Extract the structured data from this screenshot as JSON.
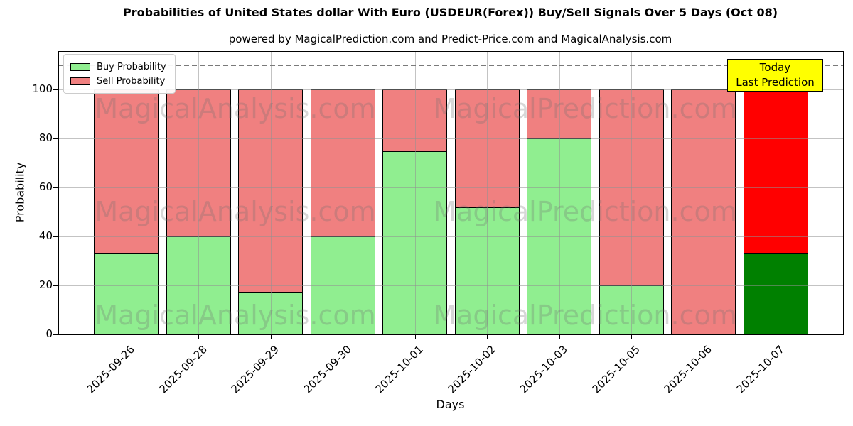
{
  "title": "Probabilities of United States dollar With Euro (USDEUR(Forex)) Buy/Sell Signals Over 5 Days (Oct 08)",
  "subtitle": "powered by MagicalPrediction.com and Predict-Price.com and MagicalAnalysis.com",
  "axes": {
    "x_label": "Days",
    "y_label": "Probability"
  },
  "legend": [
    {
      "label": "Buy Probability",
      "color": "#90EE90"
    },
    {
      "label": "Sell Probability",
      "color": "#F08080"
    }
  ],
  "annotation": {
    "line1": "Today",
    "line2": "Last Prediction",
    "bg": "#FFFF00",
    "border": "#000000"
  },
  "watermarks": {
    "left": "MagicalAnalysis.com",
    "right": "MagicalPrediction.com"
  },
  "chart_data": {
    "type": "bar",
    "stacked": true,
    "categories": [
      "2025-09-26",
      "2025-09-28",
      "2025-09-29",
      "2025-09-30",
      "2025-10-01",
      "2025-10-02",
      "2025-10-03",
      "2025-10-05",
      "2025-10-06",
      "2025-10-07"
    ],
    "series": [
      {
        "name": "Buy Probability",
        "color": "#90EE90",
        "values": [
          33,
          40,
          17,
          40,
          75,
          52,
          80,
          20,
          0,
          33
        ]
      },
      {
        "name": "Sell Probability",
        "color": "#F08080",
        "values": [
          67,
          60,
          83,
          60,
          25,
          48,
          20,
          80,
          100,
          67
        ]
      }
    ],
    "today_bar_colors": {
      "buy": "#008000",
      "sell": "#FF0000"
    },
    "title": "Probabilities of United States dollar With Euro (USDEUR(Forex)) Buy/Sell Signals Over 5 Days (Oct 08)",
    "xlabel": "Days",
    "ylabel": "Probability",
    "yticks": [
      0,
      20,
      40,
      60,
      80,
      100
    ],
    "ylim": [
      0,
      115.5
    ],
    "dashed_line_y": 110,
    "grid": true,
    "legend_position": "upper left",
    "bar_edge_color": "#000000"
  }
}
